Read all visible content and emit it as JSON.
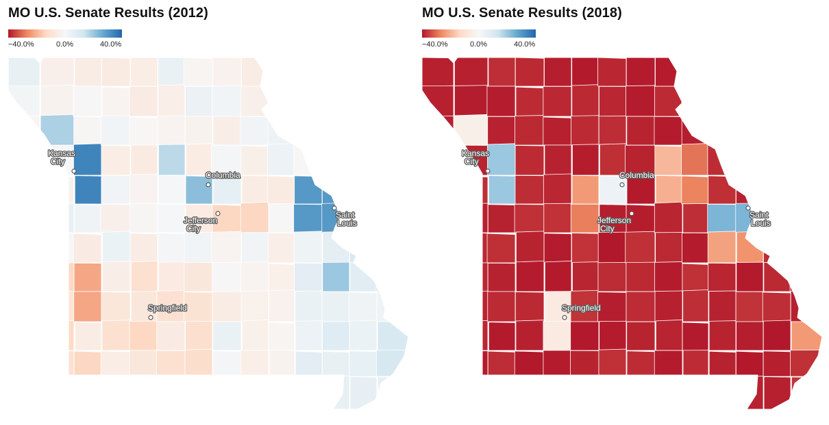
{
  "panels": [
    {
      "title": "MO U.S. Senate Results (2012)",
      "legend": {
        "ticks": [
          "−40.0%",
          "0.0%",
          "40.0%"
        ],
        "gradient": [
          "#b2182b",
          "#ef8a62",
          "#fddbc7",
          "#f7f7f7",
          "#d1e5f0",
          "#67a9cf",
          "#2166ac"
        ]
      },
      "cities": [
        {
          "name": "Kansas\nCity"
        },
        {
          "name": "Columbia"
        },
        {
          "name": "Jefferson\nCity"
        },
        {
          "name": "Saint\nLouis"
        },
        {
          "name": "Springfield"
        }
      ],
      "overall_shading": "mostly light tints near 0.0%; bluer in Kansas City, Columbia and Saint Louis"
    },
    {
      "title": "MO U.S. Senate Results (2018)",
      "legend": {
        "ticks": [
          "−40.0%",
          "0.0%",
          "40.0%"
        ],
        "gradient": [
          "#b2182b",
          "#ef8a62",
          "#fddbc7",
          "#f7f7f7",
          "#d1e5f0",
          "#67a9cf",
          "#2166ac"
        ]
      },
      "cities": [
        {
          "name": "Kansas\nCity"
        },
        {
          "name": "Columbia"
        },
        {
          "name": "Jefferson\nCity"
        },
        {
          "name": "Saint\nLouis"
        },
        {
          "name": "Springfield"
        }
      ],
      "overall_shading": "mostly deep red; blue only in Kansas City, Columbia and Saint Louis"
    }
  ]
}
